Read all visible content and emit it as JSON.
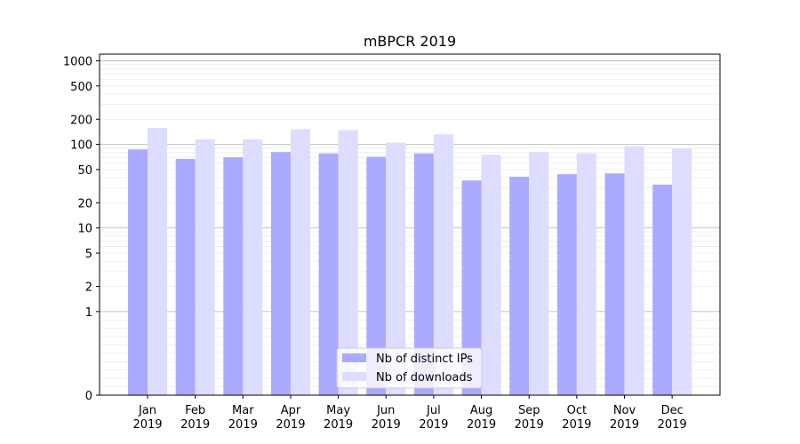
{
  "chart_data": {
    "type": "bar",
    "title": "mBPCR 2019",
    "xlabel": "",
    "ylabel": "",
    "yscale": "symlog",
    "ylim": [
      0,
      1200
    ],
    "y_ticks": [
      0,
      1,
      2,
      5,
      10,
      20,
      50,
      100,
      200,
      500,
      1000
    ],
    "grid": "horizontal",
    "legend_position": "bottom-center",
    "categories": [
      [
        "Jan",
        "2019"
      ],
      [
        "Feb",
        "2019"
      ],
      [
        "Mar",
        "2019"
      ],
      [
        "Apr",
        "2019"
      ],
      [
        "May",
        "2019"
      ],
      [
        "Jun",
        "2019"
      ],
      [
        "Jul",
        "2019"
      ],
      [
        "Aug",
        "2019"
      ],
      [
        "Sep",
        "2019"
      ],
      [
        "Oct",
        "2019"
      ],
      [
        "Nov",
        "2019"
      ],
      [
        "Dec",
        "2019"
      ]
    ],
    "series": [
      {
        "name": "Nb of distinct IPs",
        "color": "#aaaaff",
        "values": [
          87,
          67,
          70,
          81,
          78,
          71,
          78,
          37,
          41,
          44,
          45,
          33
        ]
      },
      {
        "name": "Nb of downloads",
        "color": "#ddddff",
        "values": [
          158,
          115,
          115,
          152,
          148,
          105,
          132,
          75,
          81,
          78,
          95,
          90
        ]
      }
    ]
  }
}
